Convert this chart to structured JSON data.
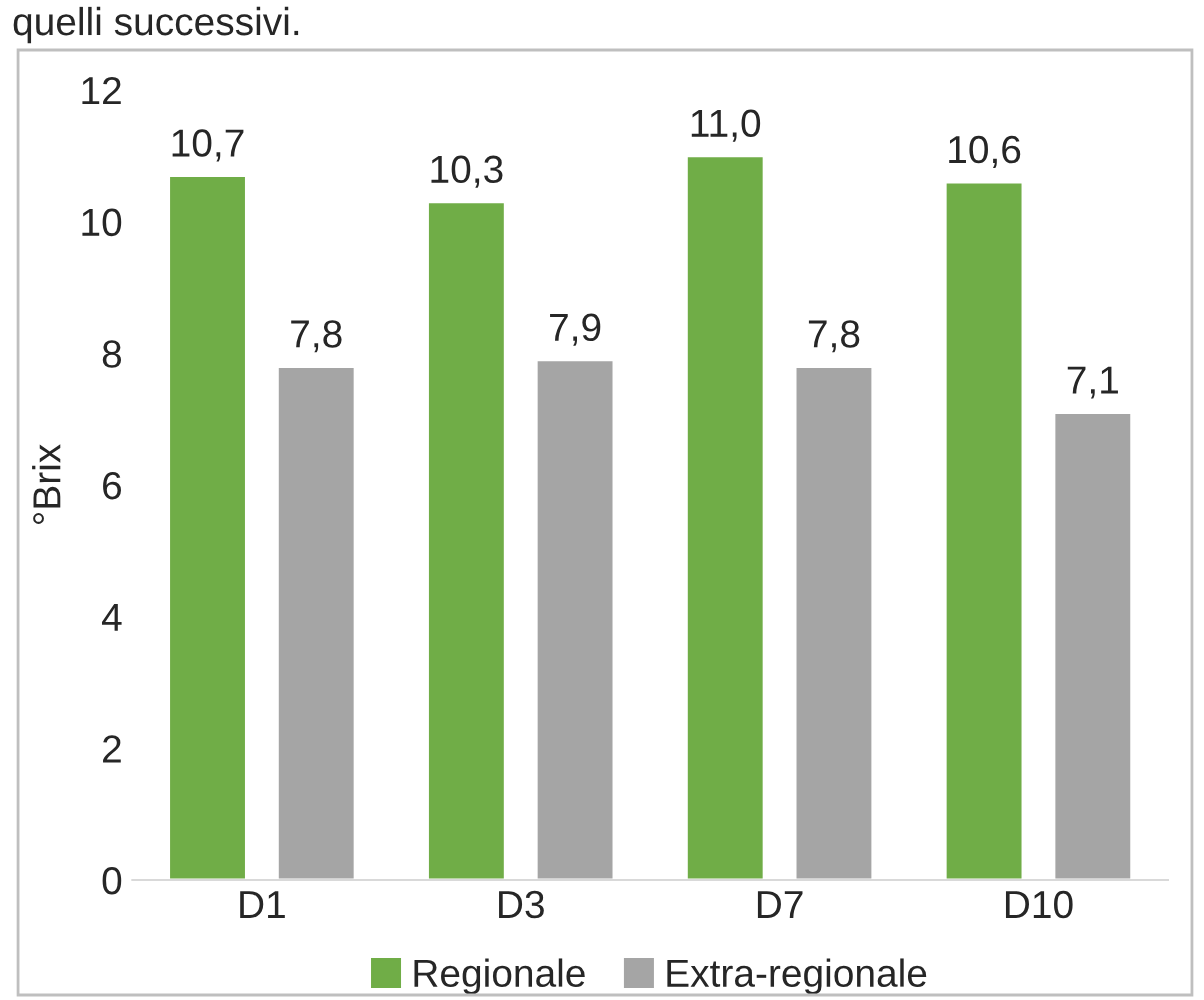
{
  "chart_data": {
    "type": "bar",
    "ylabel": "°Brix",
    "annotations": [
      "quelli successivi."
    ],
    "categories": [
      "D1",
      "D3",
      "D7",
      "D10"
    ],
    "series": [
      {
        "name": "Regionale",
        "color": "#70ad47",
        "values": [
          10.7,
          10.3,
          11.0,
          10.6
        ],
        "value_labels": [
          "10,7",
          "10,3",
          "11,0",
          "10,6"
        ]
      },
      {
        "name": "Extra-regionale",
        "color": "#a5a5a5",
        "values": [
          7.8,
          7.9,
          7.8,
          7.1
        ],
        "value_labels": [
          "7,8",
          "7,9",
          "7,8",
          "7,1"
        ]
      }
    ],
    "ylim": [
      0,
      12
    ],
    "yticks": [
      0,
      2,
      4,
      6,
      8,
      10,
      12
    ],
    "grid": false,
    "legend": "bottom"
  }
}
